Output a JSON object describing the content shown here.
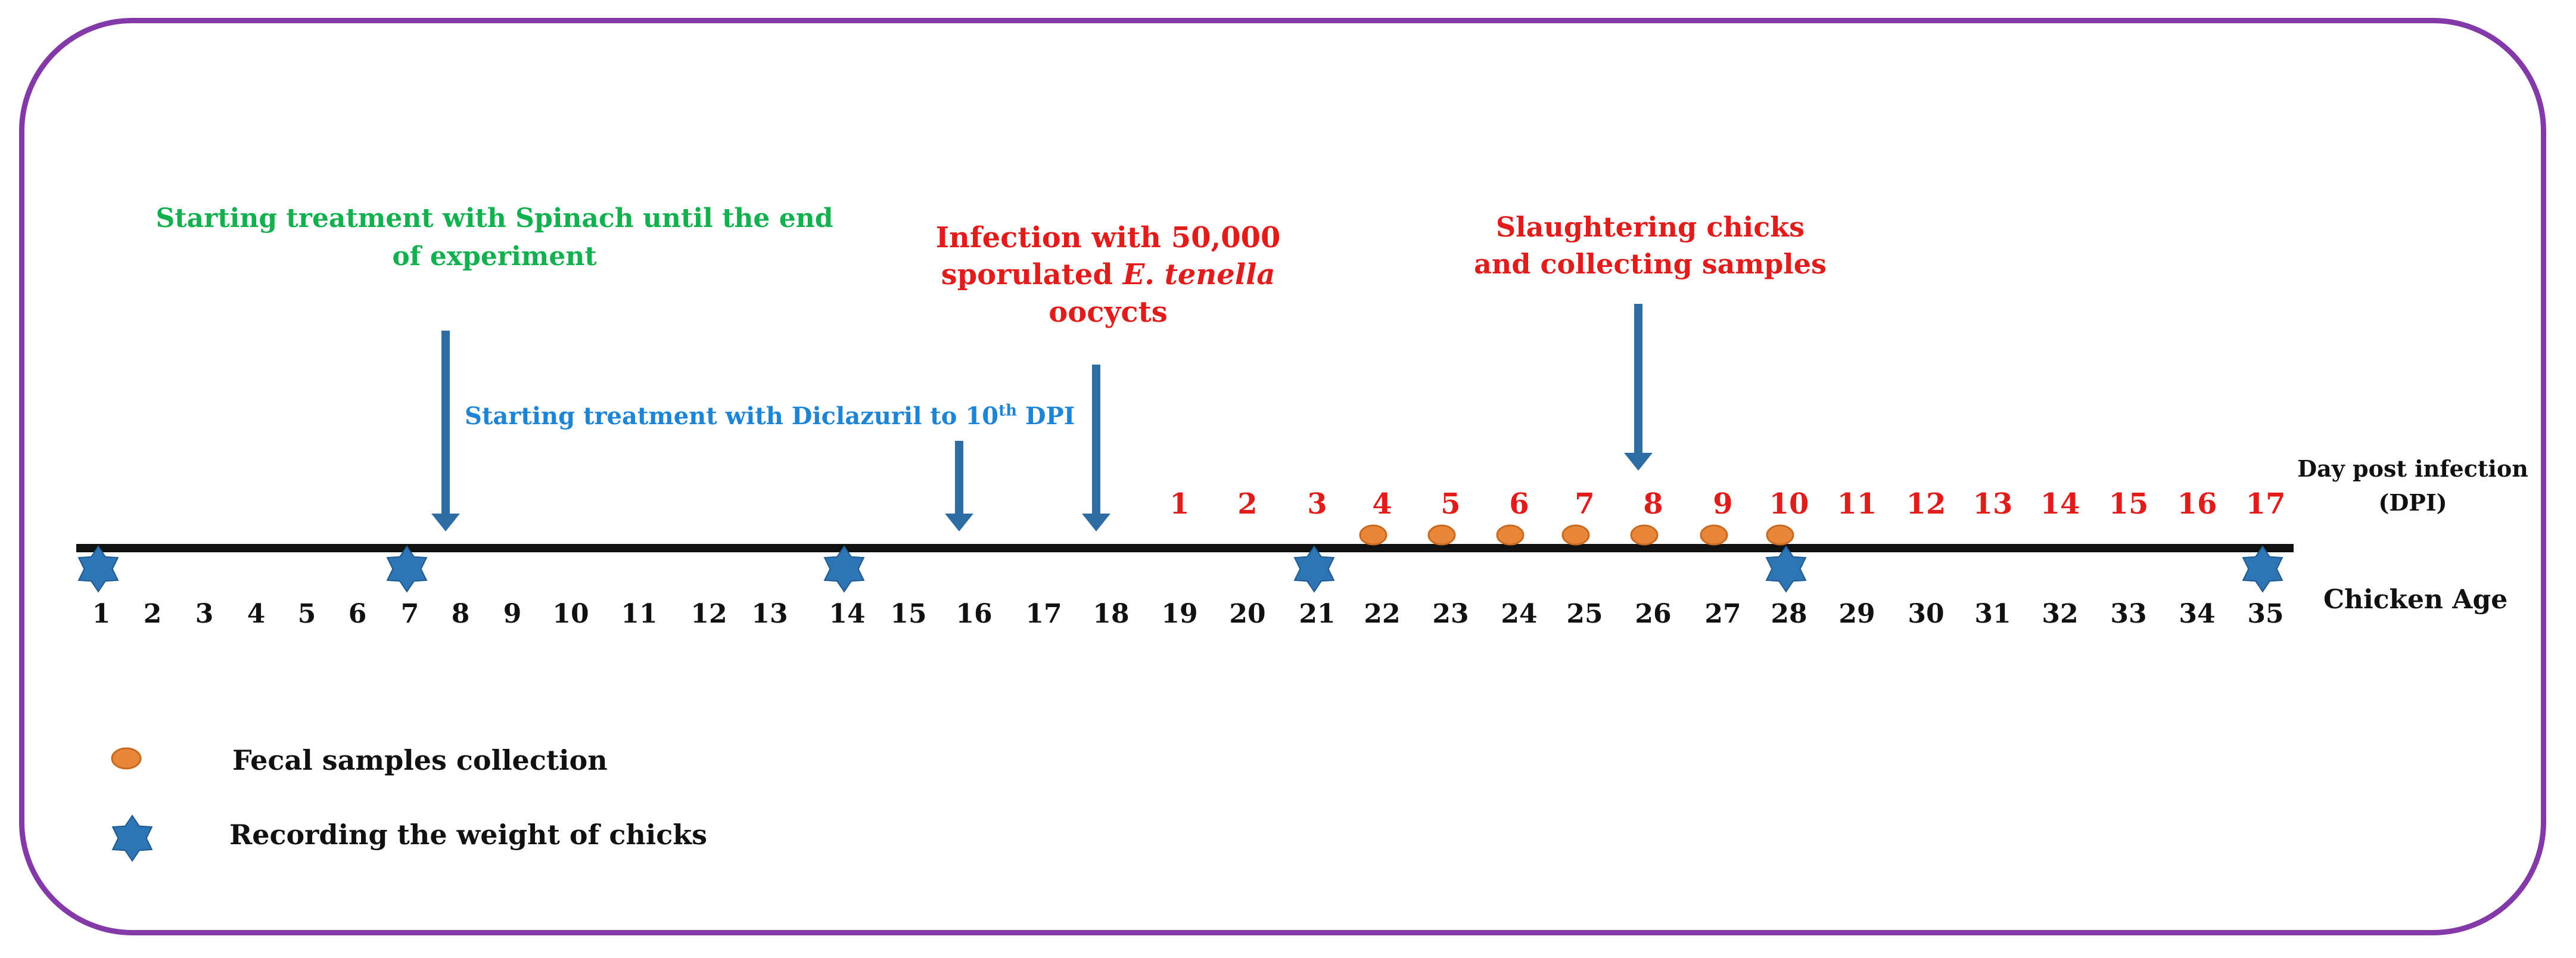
{
  "annotations": {
    "spinach_line1": "Starting treatment with Spinach until the end",
    "spinach_line2": "of experiment",
    "diclazuril_prefix": "Starting treatment with Diclazuril to 10",
    "diclazuril_sup": "th",
    "diclazuril_suffix": " DPI",
    "infection_line1": "Infection with 50,000",
    "infection_line2_prefix": "sporulated ",
    "infection_line2_italic": "E. tenella",
    "infection_line3": "oocycts",
    "slaughter_line1": "Slaughtering chicks",
    "slaughter_line2": "and collecting samples"
  },
  "axis_labels": {
    "dpi_line1": "Day post infection",
    "dpi_line2": "(DPI)",
    "age": "Chicken Age"
  },
  "legend": {
    "fecal": "Fecal samples collection",
    "weight": "Recording the weight of chicks"
  },
  "timeline": {
    "age_days": [
      1,
      2,
      3,
      4,
      5,
      6,
      7,
      8,
      9,
      10,
      11,
      12,
      13,
      14,
      15,
      16,
      17,
      18,
      19,
      20,
      21,
      22,
      23,
      24,
      25,
      26,
      27,
      28,
      29,
      30,
      31,
      32,
      33,
      34,
      35
    ],
    "dpi_days": [
      1,
      2,
      3,
      4,
      5,
      6,
      7,
      8,
      9,
      10,
      11,
      12,
      13,
      14,
      15,
      16,
      17
    ],
    "dpi_start_age": 19,
    "weight_record_ages": [
      1,
      7,
      14,
      21,
      28,
      35
    ],
    "fecal_collection_ages": [
      22,
      23,
      24,
      25,
      26,
      27,
      28
    ],
    "arrow_ages": {
      "spinach": 8,
      "diclazuril": 16,
      "infection": 18,
      "slaughter": 26
    }
  },
  "colors": {
    "frame": "#8439a8",
    "timeline": "#111111",
    "arrow": "#2e6da4",
    "star": "#2e75b6",
    "fecal_dot": "#e8863a",
    "dpi_text": "#e21b1b",
    "age_text": "#111111"
  },
  "icons": {
    "weight_marker": "star-icon",
    "fecal_marker": "fecal-dot-icon"
  }
}
